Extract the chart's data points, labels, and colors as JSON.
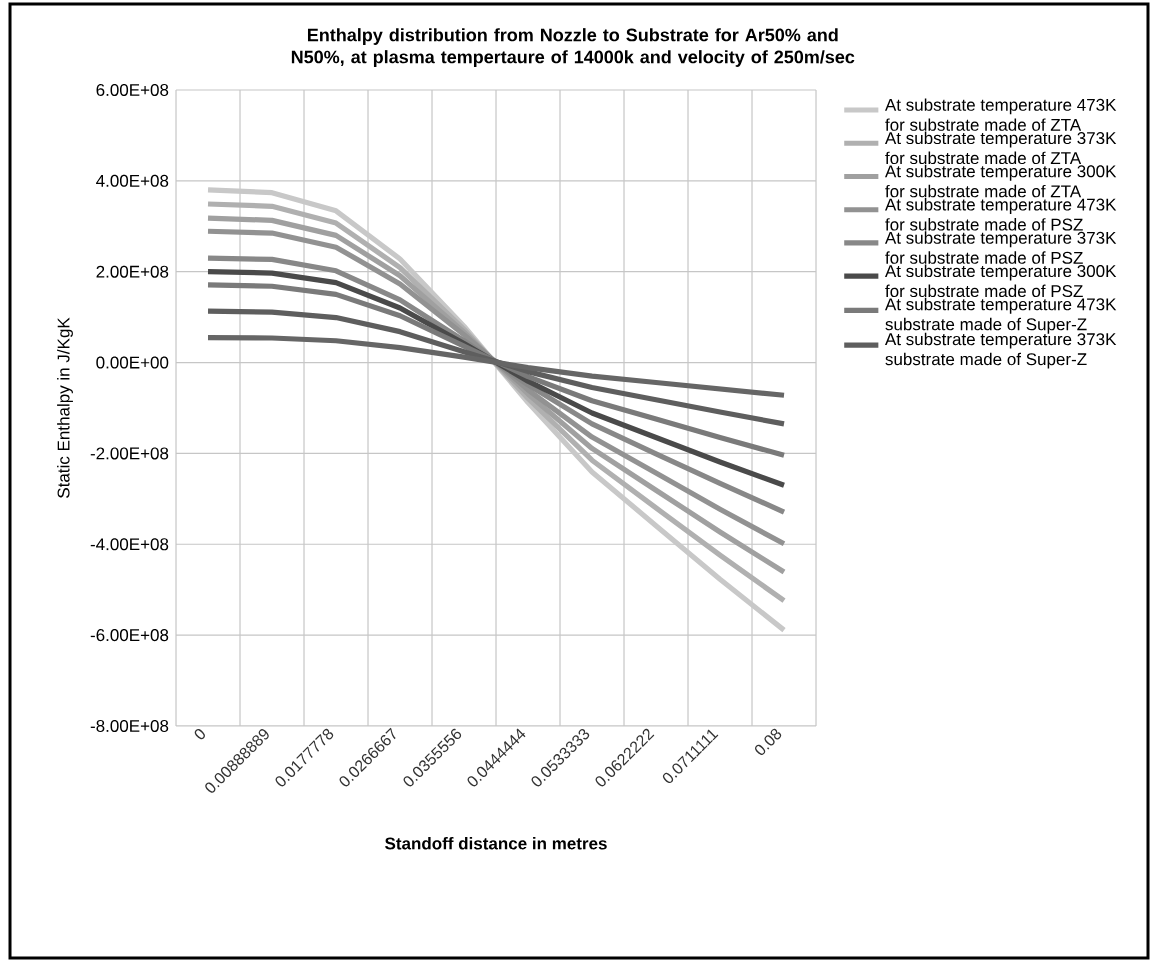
{
  "chart_data": {
    "type": "line",
    "title": "Enthalpy distribution from Nozzle to Substrate for Ar50% and N50%, at plasma tempertaure of 14000k and velocity of 250m/sec",
    "xlabel": "Standoff distance in metres",
    "ylabel": "Static Enthalpy in J/KgK",
    "categories": [
      "0",
      "0.00888889",
      "0.0177778",
      "0.0266667",
      "0.0355556",
      "0.0444444",
      "0.0533333",
      "0.0622222",
      "0.0711111",
      "0.08"
    ],
    "ylim": [
      -800000000,
      600000000
    ],
    "yticks": [
      {
        "value": -800000000,
        "label": "-8.00E+08"
      },
      {
        "value": -600000000,
        "label": "-6.00E+08"
      },
      {
        "value": -400000000,
        "label": "-4.00E+08"
      },
      {
        "value": -200000000,
        "label": "-2.00E+08"
      },
      {
        "value": 0,
        "label": "0.00E+00"
      },
      {
        "value": 200000000,
        "label": "2.00E+08"
      },
      {
        "value": 400000000,
        "label": "4.00E+08"
      },
      {
        "value": 600000000,
        "label": "6.00E+08"
      }
    ],
    "grid": true,
    "legend": "right",
    "marker": "none",
    "line_style": "solid",
    "series": [
      {
        "name": "At substrate temperature 473K for substrate made of ZTA",
        "color": "#c8c8c8",
        "values": [
          380000000.0,
          374000000.0,
          334000000.0,
          228000000.0,
          80000000.0,
          -88000000.0,
          -241000000.0,
          -359000000.0,
          -477000000.0,
          -589000000.0
        ]
      },
      {
        "name": "At substrate temperature 373K for substrate made of ZTA",
        "color": "#b0b0b0",
        "values": [
          349000000.0,
          344000000.0,
          307000000.0,
          209000000.0,
          73000000.0,
          -79000000.0,
          -215000000.0,
          -320000000.0,
          -424000000.0,
          -524000000.0
        ]
      },
      {
        "name": "At substrate temperature 300K for substrate made of ZTA",
        "color": "#a0a0a0",
        "values": [
          318000000.0,
          313000000.0,
          280000000.0,
          191000000.0,
          67000000.0,
          -69000000.0,
          -189000000.0,
          -281000000.0,
          -373000000.0,
          -461000000.0
        ]
      },
      {
        "name": "At substrate temperature 473K for substrate made of PSZ",
        "color": "#929292",
        "values": [
          289000000.0,
          285000000.0,
          254000000.0,
          173000000.0,
          61000000.0,
          -60000000.0,
          -164000000.0,
          -243000000.0,
          -323000000.0,
          -399000000.0
        ]
      },
      {
        "name": "At substrate temperature 373K for substrate made of PSZ",
        "color": "#888888",
        "values": [
          230000000.0,
          227000000.0,
          202000000.0,
          138000000.0,
          48000000.0,
          -49000000.0,
          -135000000.0,
          -201000000.0,
          -266000000.0,
          -329000000.0
        ]
      },
      {
        "name": "At substrate temperature 300K for substrate made of PSZ",
        "color": "#4a4a4a",
        "values": [
          200000000.0,
          197000000.0,
          176000000.0,
          120000000.0,
          42000000.0,
          -41000000.0,
          -111000000.0,
          -165000000.0,
          -219000000.0,
          -270000000.0
        ]
      },
      {
        "name": "At substrate temperature 473K substrate made of Super-Z",
        "color": "#7a7a7a",
        "values": [
          171000000.0,
          168000000.0,
          150000000.0,
          103000000.0,
          36000000.0,
          -31000000.0,
          -84000000.0,
          -124000000.0,
          -165000000.0,
          -204000000.0
        ]
      },
      {
        "name": "At substrate temperature 373K substrate made of Super-Z",
        "color": "#5e5e5e",
        "values": [
          113000000.0,
          111000000.0,
          99000000.0,
          68000000.0,
          24000000.0,
          -20000000.0,
          -55000000.0,
          -82000000.0,
          -109000000.0,
          -135000000.0
        ]
      },
      {
        "color": "#666666",
        "values": [
          55000000.0,
          54000000.0,
          48000000.0,
          33000000.0,
          12000000.0,
          -11000000.0,
          -30000000.0,
          -44000000.0,
          -58000000.0,
          -72000000.0
        ]
      }
    ]
  }
}
